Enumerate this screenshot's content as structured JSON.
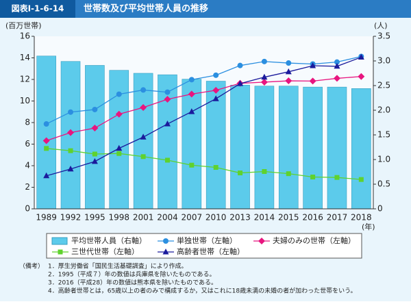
{
  "header": {
    "label": "図表Ⅰ-1-6-14",
    "title": "世帯数及び平均世帯人員の推移"
  },
  "chart_data": {
    "type": "combo",
    "y_label": "(百万世帯)",
    "y2_label": "(人)",
    "x_unit": "(年)",
    "categories": [
      "1989",
      "1992",
      "1995",
      "1998",
      "2001",
      "2004",
      "2007",
      "2010",
      "2013",
      "2014",
      "2015",
      "2016",
      "2017",
      "2018"
    ],
    "ylim": [
      0,
      16
    ],
    "yticks": [
      0,
      2,
      4,
      6,
      8,
      10,
      12,
      14,
      16
    ],
    "y2lim": [
      0,
      3.5
    ],
    "y2ticks": [
      0,
      0.5,
      {
        "value": 1,
        "label": "1.0"
      },
      1.5,
      {
        "value": 2,
        "label": "2.0"
      },
      2.5,
      {
        "value": 3,
        "label": "3.0"
      },
      3.5
    ],
    "series": [
      {
        "name": "平均世帯人員（右軸）",
        "type": "bar",
        "axis": "y2",
        "color": "#5ccbeb",
        "values": [
          3.1,
          2.99,
          2.91,
          2.81,
          2.75,
          2.72,
          2.63,
          2.59,
          2.51,
          2.49,
          2.49,
          2.47,
          2.47,
          2.44
        ]
      },
      {
        "name": "単独世帯（左軸）",
        "type": "line",
        "marker": "circle",
        "color": "#2b8fe0",
        "values": [
          7.87,
          8.97,
          9.21,
          10.63,
          11.02,
          10.82,
          11.98,
          12.39,
          13.29,
          13.66,
          13.52,
          13.43,
          13.61,
          14.13
        ]
      },
      {
        "name": "夫婦のみの世帯（左軸）",
        "type": "line",
        "marker": "diamond",
        "color": "#e8157f",
        "values": [
          6.32,
          7.07,
          7.49,
          8.78,
          9.4,
          10.16,
          10.64,
          10.99,
          11.64,
          11.75,
          11.87,
          11.85,
          12.1,
          12.27
        ]
      },
      {
        "name": "三世代世帯（左軸）",
        "type": "line",
        "marker": "square",
        "color": "#5fd22e",
        "values": [
          5.6,
          5.39,
          5.08,
          5.13,
          4.84,
          4.51,
          4.05,
          3.84,
          3.33,
          3.46,
          3.26,
          2.95,
          2.91,
          2.72
        ]
      },
      {
        "name": "高齢者世帯（左軸）",
        "type": "line",
        "marker": "triangle",
        "color": "#1b1b9c",
        "values": [
          3.06,
          3.69,
          4.39,
          5.61,
          6.65,
          7.87,
          9.01,
          10.21,
          11.61,
          12.21,
          12.71,
          13.27,
          13.22,
          14.06
        ]
      }
    ]
  },
  "notes": {
    "label": "（備考）",
    "items": [
      "1．厚生労働省「国民生活基礎調査」により作成。",
      "2．1995（平成７）年の数値は兵庫県を除いたものである。",
      "3．2016（平成28）年の数値は熊本県を除いたものである。",
      "4．高齢者世帯とは，65歳以上の者のみで構成するか，又はこれに18歳未満の未婚の者が加わった世帯をいう。"
    ]
  }
}
